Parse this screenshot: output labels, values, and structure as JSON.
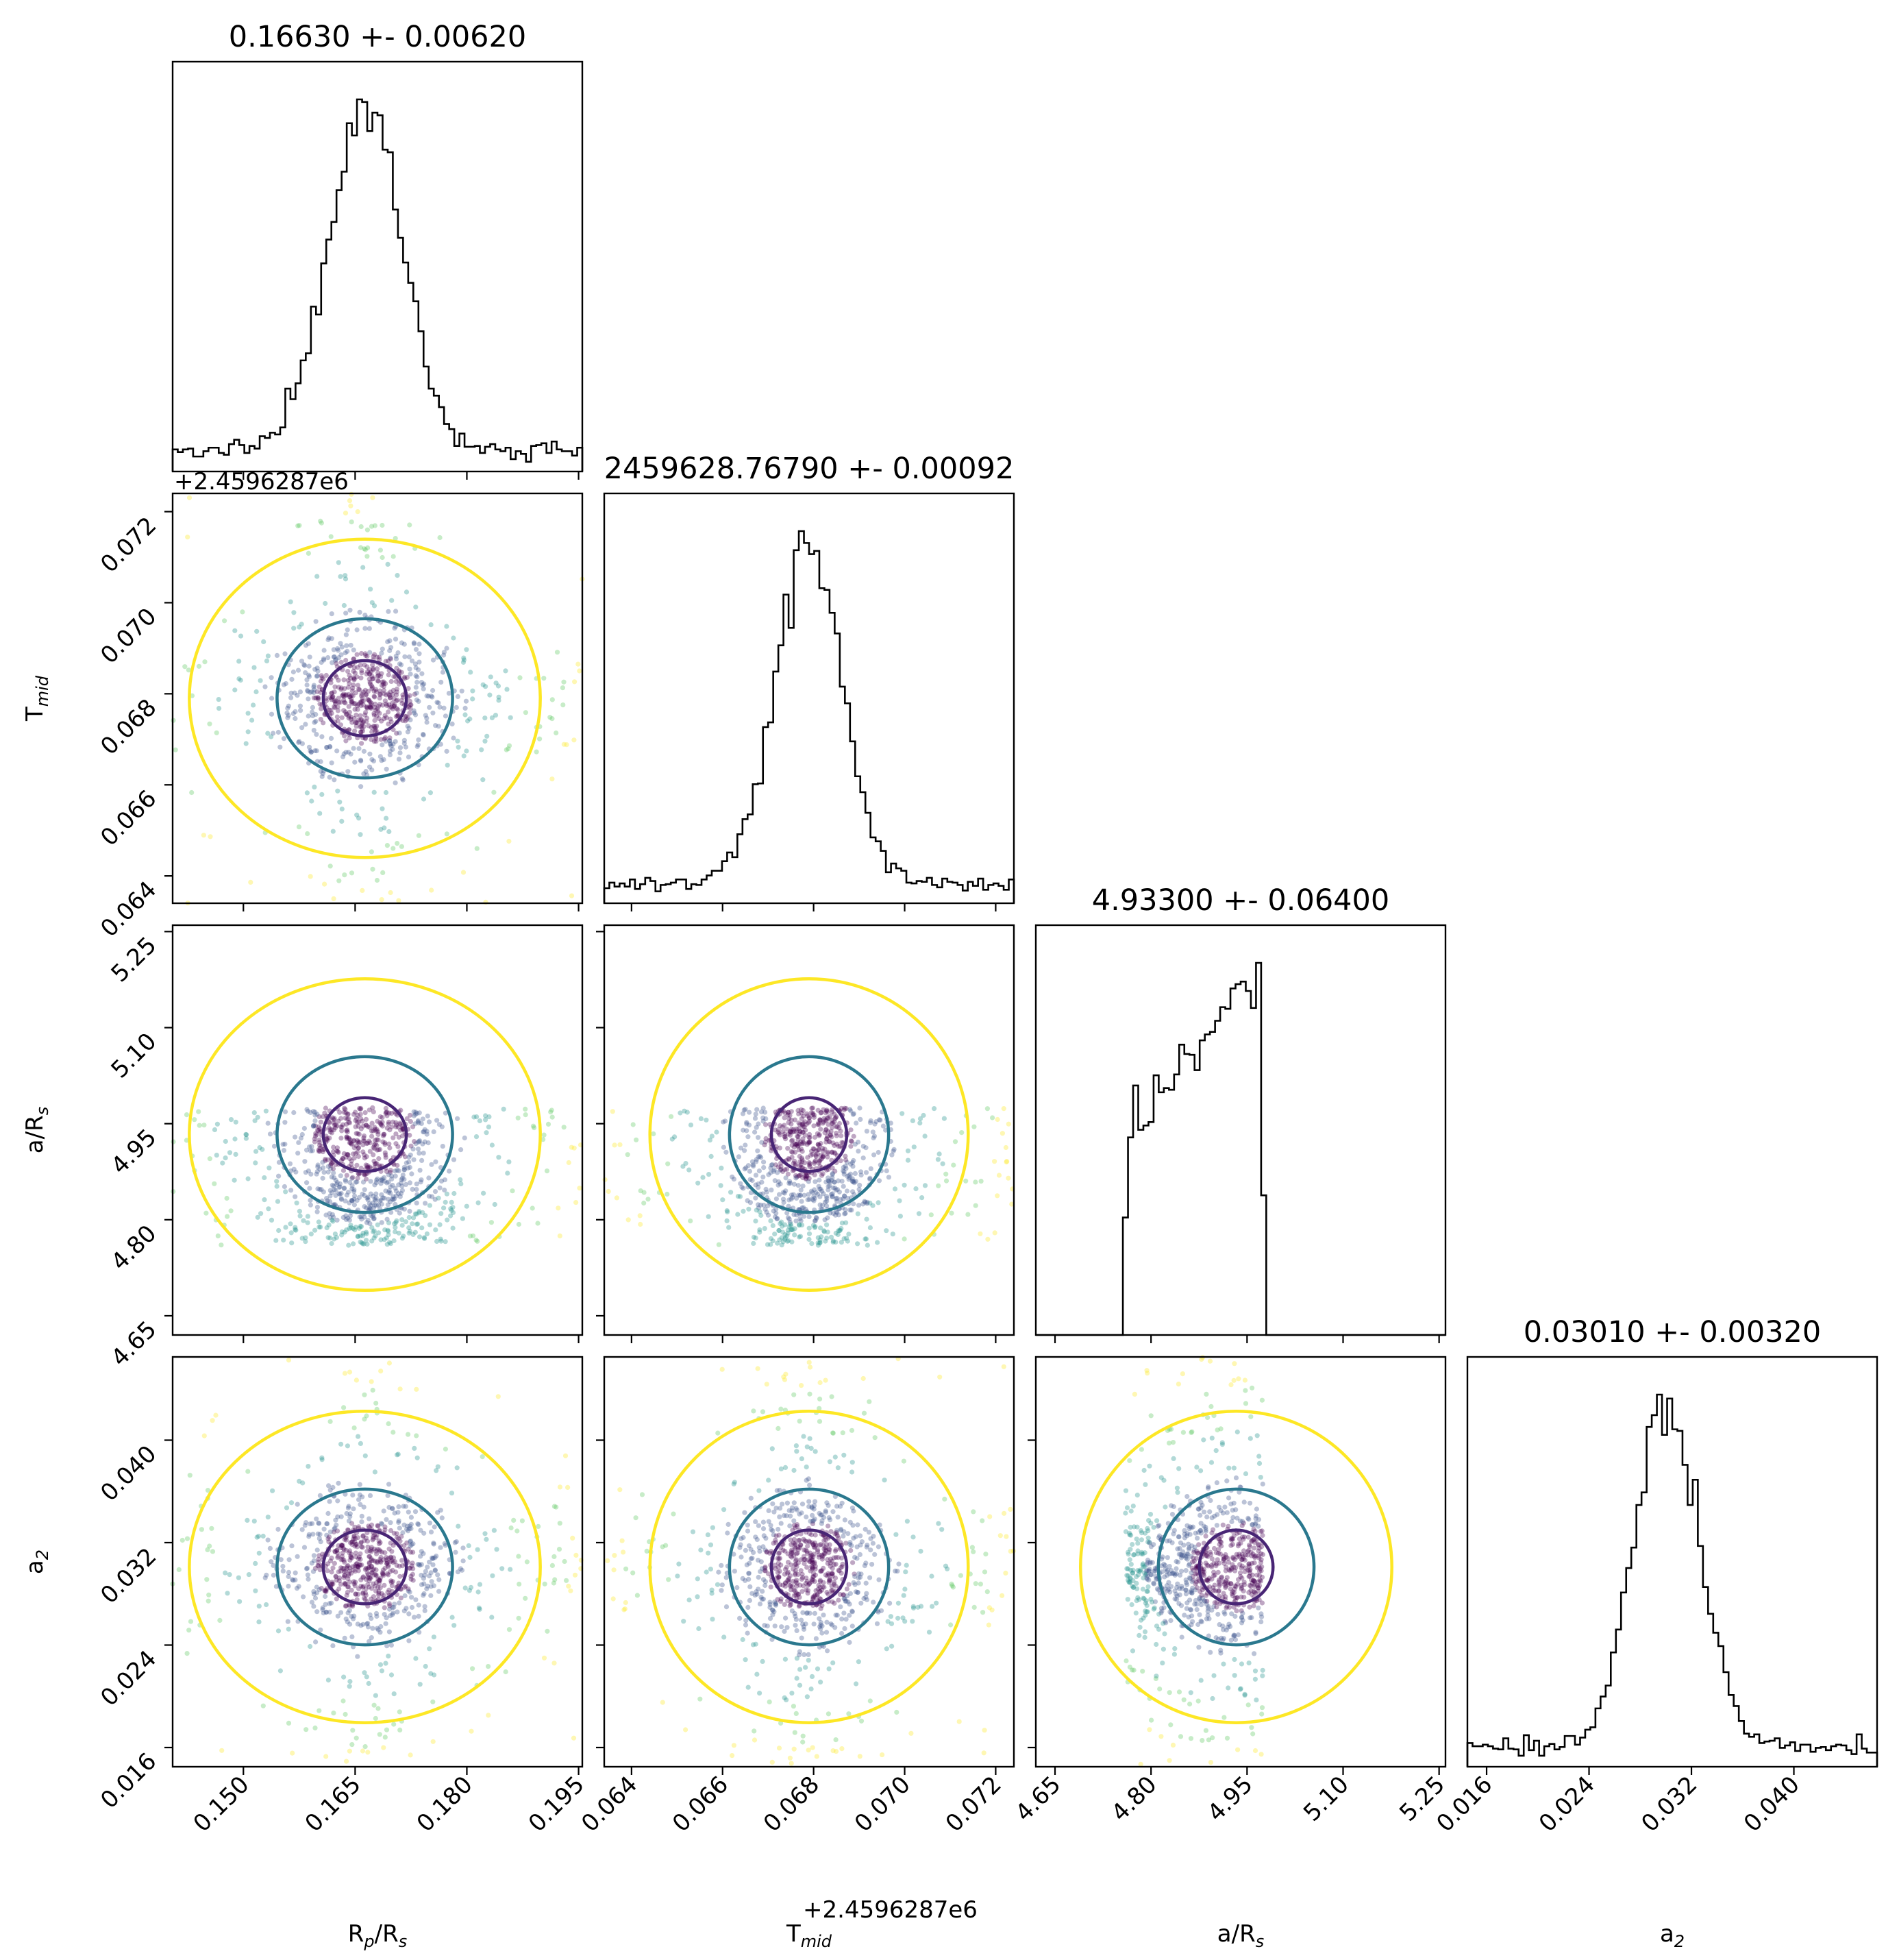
{
  "chart_data": {
    "type": "corner",
    "titles": [
      "0.16630 +- 0.00620",
      "2459628.76790 +- 0.00092",
      "4.93300 +- 0.06400",
      "0.03010 +- 0.00320"
    ],
    "parameters": [
      {
        "name": "R_p/R_s",
        "label_main": "R",
        "label_sub": "p",
        "label_rest": "/R",
        "label_sub2": "s",
        "range": [
          0.1405,
          0.1955
        ],
        "ticks": [
          0.15,
          0.165,
          0.18,
          0.195
        ],
        "tick_labels": [
          "0.150",
          "0.165",
          "0.180",
          "0.195"
        ],
        "mean": 0.1663,
        "sigma": 0.0062
      },
      {
        "name": "T_mid",
        "label_main": "T",
        "label_sub": "mid",
        "label_rest": "",
        "label_sub2": "",
        "offset": "+2.4596287e6",
        "range": [
          0.0634,
          0.0724
        ],
        "ticks": [
          0.064,
          0.066,
          0.068,
          0.07,
          0.072
        ],
        "tick_labels": [
          "0.064",
          "0.066",
          "0.068",
          "0.070",
          "0.072"
        ],
        "mean": 0.0679,
        "sigma": 0.00092
      },
      {
        "name": "a/R_s",
        "label_main": "a/R",
        "label_sub": "s",
        "label_rest": "",
        "label_sub2": "",
        "range": [
          4.62,
          5.26
        ],
        "ticks": [
          4.65,
          4.8,
          4.95,
          5.1,
          5.25
        ],
        "tick_labels": [
          "4.65",
          "4.80",
          "4.95",
          "5.10",
          "5.25"
        ],
        "mean": 4.933,
        "sigma": 0.064
      },
      {
        "name": "a_2",
        "label_main": "a",
        "label_sub": "2",
        "label_rest": "",
        "label_sub2": "",
        "range": [
          0.0145,
          0.0465
        ],
        "ticks": [
          0.016,
          0.024,
          0.032,
          0.04
        ],
        "tick_labels": [
          "0.016",
          "0.024",
          "0.032",
          "0.040"
        ],
        "mean": 0.0301,
        "sigma": 0.0032
      }
    ],
    "contour_levels": [
      "inner",
      "middle",
      "outer"
    ],
    "colors": {
      "inner": "#482575",
      "middle": "#2a788e",
      "outer": "#fde725",
      "points": [
        "#440154",
        "#3b528b",
        "#21918c",
        "#5ec962",
        "#fde725"
      ],
      "histogram": "#000000"
    },
    "grid": false,
    "legend": "none"
  }
}
